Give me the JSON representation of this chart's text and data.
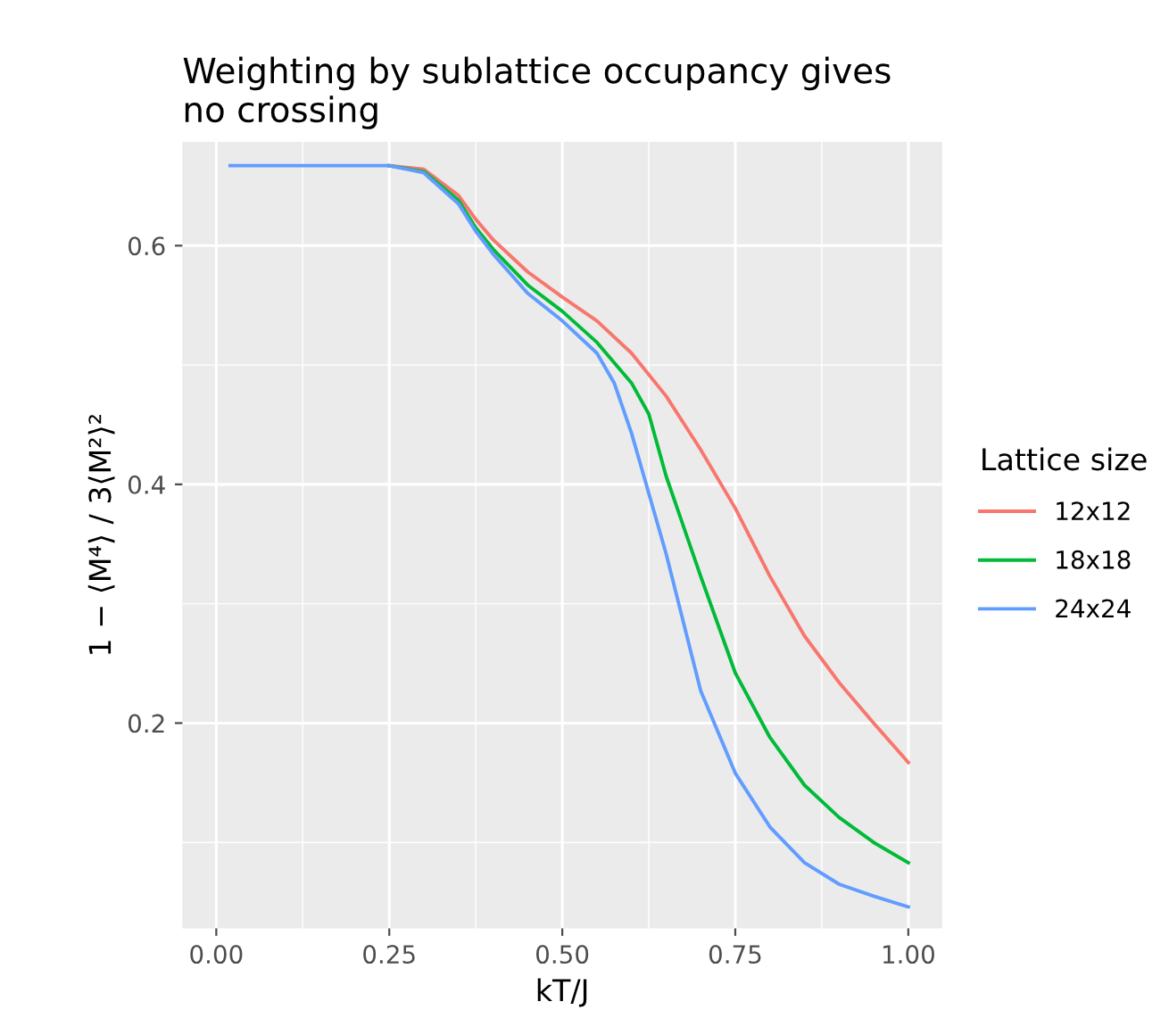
{
  "chart_data": {
    "type": "line",
    "title": "Weighting by sublattice occupancy gives\nno crossing",
    "xlabel": "kT/J",
    "ylabel": "1 − ⟨M⁴⟩ / 3⟨M²⟩²",
    "legend_title": "Lattice size",
    "series": [
      {
        "name": "12x12",
        "color": "#f8766d",
        "x": [
          0.25,
          0.3,
          0.35,
          0.375,
          0.4,
          0.45,
          0.5,
          0.55,
          0.6,
          0.65,
          0.7,
          0.75,
          0.8,
          0.85,
          0.9,
          0.95,
          1.0
        ],
        "values": [
          0.667,
          0.664,
          0.642,
          0.622,
          0.605,
          0.578,
          0.557,
          0.537,
          0.51,
          0.474,
          0.429,
          0.38,
          0.323,
          0.273,
          0.234,
          0.2,
          0.167
        ]
      },
      {
        "name": "18x18",
        "color": "#00ba38",
        "x": [
          0.25,
          0.3,
          0.35,
          0.375,
          0.4,
          0.45,
          0.5,
          0.55,
          0.6,
          0.625,
          0.65,
          0.7,
          0.75,
          0.8,
          0.85,
          0.9,
          0.95,
          1.0
        ],
        "values": [
          0.667,
          0.662,
          0.638,
          0.615,
          0.597,
          0.567,
          0.545,
          0.519,
          0.485,
          0.459,
          0.407,
          0.323,
          0.242,
          0.188,
          0.148,
          0.121,
          0.1,
          0.083
        ]
      },
      {
        "name": "24x24",
        "color": "#619cff",
        "x": [
          0.02,
          0.1,
          0.2,
          0.25,
          0.3,
          0.35,
          0.375,
          0.4,
          0.45,
          0.5,
          0.55,
          0.575,
          0.6,
          0.65,
          0.7,
          0.75,
          0.8,
          0.85,
          0.9,
          0.95,
          1.0
        ],
        "values": [
          0.667,
          0.667,
          0.667,
          0.667,
          0.661,
          0.635,
          0.612,
          0.593,
          0.56,
          0.537,
          0.51,
          0.485,
          0.443,
          0.342,
          0.227,
          0.158,
          0.113,
          0.083,
          0.065,
          0.055,
          0.046
        ]
      }
    ],
    "xlim": [
      -0.049,
      1.049
    ],
    "ylim": [
      0.028,
      0.687
    ],
    "xticks": [
      {
        "value": 0,
        "label": "0.00"
      },
      {
        "value": 0.25,
        "label": "0.25"
      },
      {
        "value": 0.5,
        "label": "0.50"
      },
      {
        "value": 0.75,
        "label": "0.75"
      },
      {
        "value": 1,
        "label": "1.00"
      }
    ],
    "yticks": [
      0.2,
      0.4,
      0.6
    ],
    "grid": true,
    "legend": "right",
    "line_style": "solid",
    "marker": "none"
  }
}
